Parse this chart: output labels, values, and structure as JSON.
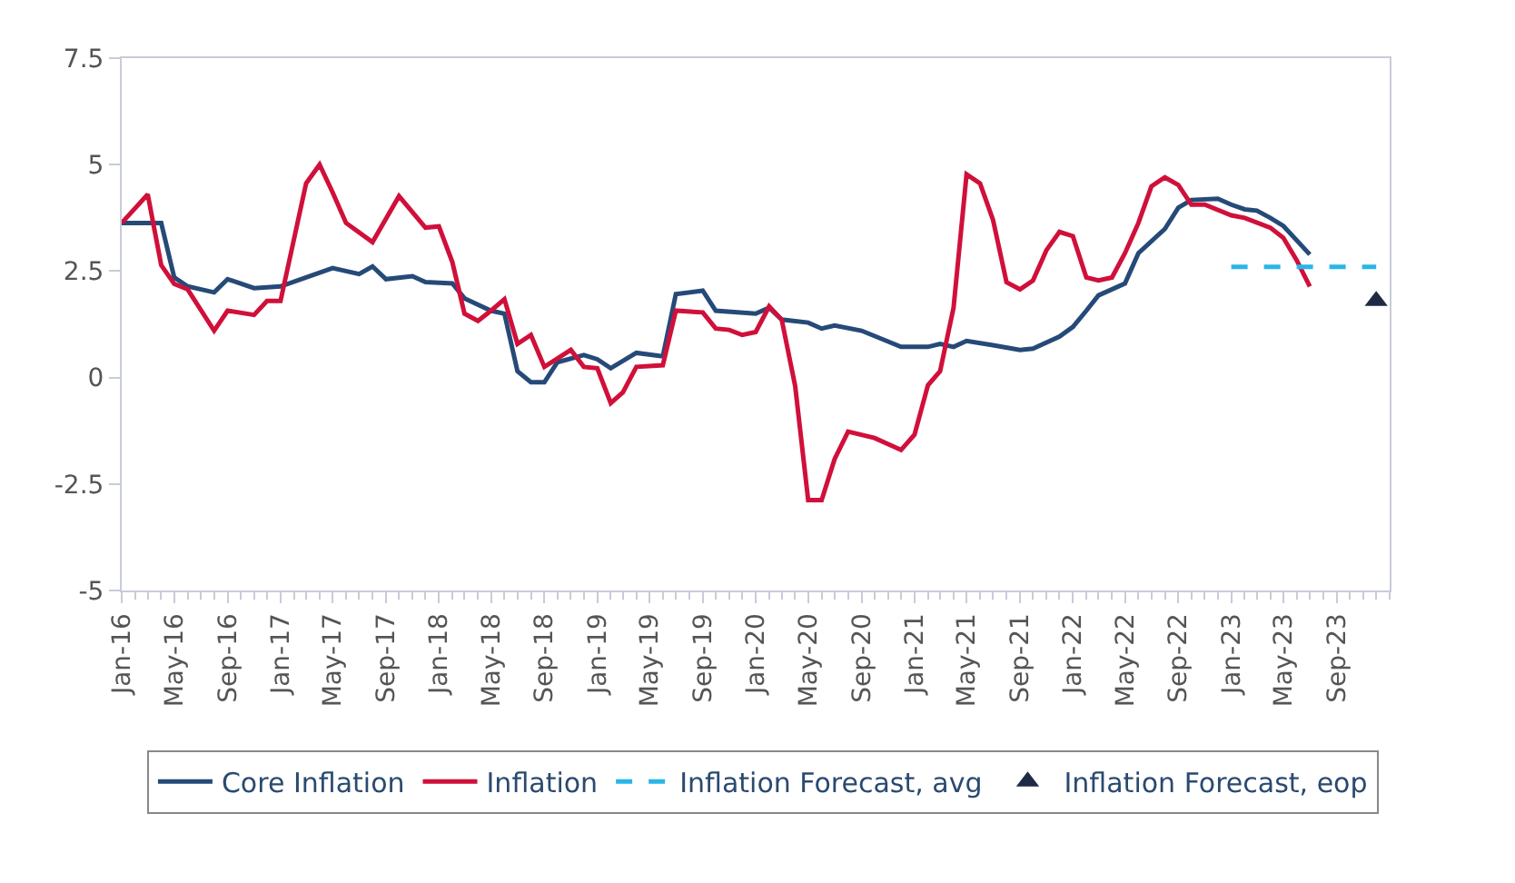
{
  "chart_data": {
    "type": "line",
    "xlim": [
      "2016-01",
      "2024-01"
    ],
    "xticks": [
      {
        "value": "2016-01",
        "label": "Jan-16"
      },
      {
        "value": "2016-05",
        "label": "May-16"
      },
      {
        "value": "2016-09",
        "label": "Sep-16"
      },
      {
        "value": "2017-01",
        "label": "Jan-17"
      },
      {
        "value": "2017-05",
        "label": "May-17"
      },
      {
        "value": "2017-09",
        "label": "Sep-17"
      },
      {
        "value": "2018-01",
        "label": "Jan-18"
      },
      {
        "value": "2018-05",
        "label": "May-18"
      },
      {
        "value": "2018-09",
        "label": "Sep-18"
      },
      {
        "value": "2019-01",
        "label": "Jan-19"
      },
      {
        "value": "2019-05",
        "label": "May-19"
      },
      {
        "value": "2019-09",
        "label": "Sep-19"
      },
      {
        "value": "2020-01",
        "label": "Jan-20"
      },
      {
        "value": "2020-05",
        "label": "May-20"
      },
      {
        "value": "2020-09",
        "label": "Sep-20"
      },
      {
        "value": "2021-01",
        "label": "Jan-21"
      },
      {
        "value": "2021-05",
        "label": "May-21"
      },
      {
        "value": "2021-09",
        "label": "Sep-21"
      },
      {
        "value": "2022-01",
        "label": "Jan-22"
      },
      {
        "value": "2022-05",
        "label": "May-22"
      },
      {
        "value": "2022-09",
        "label": "Sep-22"
      },
      {
        "value": "2023-01",
        "label": "Jan-23"
      },
      {
        "value": "2023-05",
        "label": "May-23"
      },
      {
        "value": "2023-09",
        "label": "Sep-23"
      }
    ],
    "ylim": [
      -5,
      7.5
    ],
    "yticks": [
      -5,
      -2.5,
      0,
      2.5,
      5,
      7.5
    ],
    "legend": "bottom",
    "series": [
      {
        "name": "Core Inflation",
        "color": "#264a78",
        "line_style": "solid",
        "marker": "none",
        "x": [
          "2016-01",
          "2016-04",
          "2016-05",
          "2016-06",
          "2016-08",
          "2016-09",
          "2016-11",
          "2017-01",
          "2017-03",
          "2017-05",
          "2017-07",
          "2017-08",
          "2017-09",
          "2017-11",
          "2017-12",
          "2018-02",
          "2018-03",
          "2018-05",
          "2018-06",
          "2018-07",
          "2018-08",
          "2018-09",
          "2018-10",
          "2018-12",
          "2019-01",
          "2019-02",
          "2019-04",
          "2019-06",
          "2019-07",
          "2019-09",
          "2019-10",
          "2020-01",
          "2020-02",
          "2020-03",
          "2020-05",
          "2020-06",
          "2020-07",
          "2020-09",
          "2020-12",
          "2021-02",
          "2021-03",
          "2021-04",
          "2021-05",
          "2021-07",
          "2021-09",
          "2021-10",
          "2021-12",
          "2022-01",
          "2022-02",
          "2022-03",
          "2022-05",
          "2022-06",
          "2022-08",
          "2022-09",
          "2022-10",
          "2022-12",
          "2023-01",
          "2023-02",
          "2023-03",
          "2023-04",
          "2023-05",
          "2023-07"
        ],
        "values": [
          3.63,
          3.63,
          2.35,
          2.14,
          2.0,
          2.31,
          2.1,
          2.14,
          2.35,
          2.57,
          2.43,
          2.61,
          2.31,
          2.38,
          2.24,
          2.21,
          1.86,
          1.57,
          1.5,
          0.15,
          -0.11,
          -0.11,
          0.36,
          0.53,
          0.43,
          0.22,
          0.58,
          0.5,
          1.96,
          2.04,
          1.57,
          1.5,
          1.64,
          1.36,
          1.29,
          1.15,
          1.22,
          1.1,
          0.72,
          0.72,
          0.79,
          0.72,
          0.86,
          0.76,
          0.65,
          0.68,
          0.96,
          1.19,
          1.57,
          1.93,
          2.21,
          2.92,
          3.49,
          3.99,
          4.17,
          4.2,
          4.06,
          3.95,
          3.92,
          3.75,
          3.56,
          2.89
        ]
      },
      {
        "name": "Inflation",
        "color": "#d0103a",
        "line_style": "solid",
        "marker": "none",
        "x": [
          "2016-01",
          "2016-03",
          "2016-04",
          "2016-05",
          "2016-06",
          "2016-08",
          "2016-09",
          "2016-11",
          "2016-12",
          "2017-01",
          "2017-03",
          "2017-04",
          "2017-05",
          "2017-06",
          "2017-08",
          "2017-10",
          "2017-12",
          "2018-01",
          "2018-02",
          "2018-03",
          "2018-04",
          "2018-05",
          "2018-06",
          "2018-07",
          "2018-08",
          "2018-09",
          "2018-11",
          "2018-12",
          "2019-01",
          "2019-02",
          "2019-03",
          "2019-04",
          "2019-06",
          "2019-07",
          "2019-09",
          "2019-10",
          "2019-11",
          "2019-12",
          "2020-01",
          "2020-02",
          "2020-03",
          "2020-04",
          "2020-05",
          "2020-06",
          "2020-07",
          "2020-08",
          "2020-10",
          "2020-12",
          "2021-01",
          "2021-02",
          "2021-03",
          "2021-04",
          "2021-05",
          "2021-06",
          "2021-07",
          "2021-08",
          "2021-09",
          "2021-10",
          "2021-11",
          "2021-12",
          "2022-01",
          "2022-02",
          "2022-03",
          "2022-04",
          "2022-05",
          "2022-06",
          "2022-07",
          "2022-08",
          "2022-09",
          "2022-10",
          "2022-11",
          "2023-01",
          "2023-02",
          "2023-04",
          "2023-05",
          "2023-06",
          "2023-07"
        ],
        "values": [
          3.63,
          4.3,
          2.64,
          2.2,
          2.07,
          1.1,
          1.57,
          1.47,
          1.8,
          1.8,
          4.56,
          5.0,
          4.35,
          3.63,
          3.18,
          4.26,
          3.52,
          3.55,
          2.71,
          1.5,
          1.33,
          1.57,
          1.84,
          0.79,
          1.0,
          0.25,
          0.65,
          0.25,
          0.22,
          -0.6,
          -0.35,
          0.25,
          0.29,
          1.57,
          1.53,
          1.15,
          1.12,
          1.0,
          1.07,
          1.67,
          1.36,
          -0.2,
          -2.88,
          -2.88,
          -1.91,
          -1.27,
          -1.42,
          -1.7,
          -1.34,
          -0.18,
          0.15,
          1.64,
          4.77,
          4.56,
          3.7,
          2.24,
          2.07,
          2.28,
          2.99,
          3.42,
          3.32,
          2.35,
          2.28,
          2.35,
          2.92,
          3.63,
          4.49,
          4.7,
          4.52,
          4.06,
          4.06,
          3.81,
          3.75,
          3.52,
          3.28,
          2.75,
          2.14
        ]
      },
      {
        "name": "Inflation Forecast, avg",
        "color": "#29b6e8",
        "line_style": "dashed",
        "marker": "none",
        "x": [
          "2023-01",
          "2023-12"
        ],
        "values": [
          2.6,
          2.6
        ]
      },
      {
        "name": "Inflation Forecast, eop",
        "color": "#1f2a44",
        "type": "scatter",
        "marker": "triangle",
        "x": [
          "2023-12"
        ],
        "values": [
          1.8
        ]
      }
    ]
  }
}
